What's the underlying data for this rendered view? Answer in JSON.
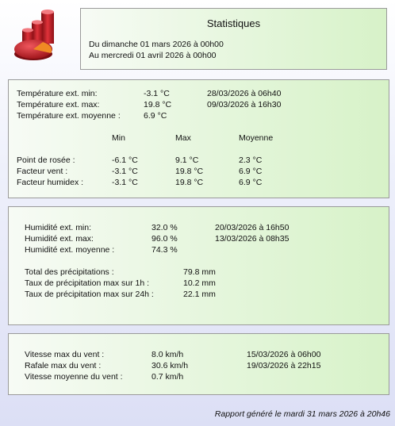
{
  "header": {
    "title": "Statistiques",
    "period_from": "Du dimanche 01 mars 2026 à 00h00",
    "period_to": "Au mercredi 01 avril 2026 à 00h00"
  },
  "temperature": {
    "rows": [
      {
        "label": "Température ext. min:",
        "value": "-3.1 °C",
        "date": "28/03/2026 à 06h40"
      },
      {
        "label": "Température ext. max:",
        "value": "19.8 °C",
        "date": "09/03/2026 à 16h30"
      },
      {
        "label": "Température ext. moyenne :",
        "value": "6.9 °C",
        "date": ""
      }
    ],
    "columns": {
      "min": "Min",
      "max": "Max",
      "avg": "Moyenne"
    },
    "stats": [
      {
        "label": "Point de rosée :",
        "min": "-6.1 °C",
        "max": "9.1 °C",
        "avg": "2.3 °C"
      },
      {
        "label": "Facteur vent :",
        "min": "-3.1 °C",
        "max": "19.8 °C",
        "avg": "6.9 °C"
      },
      {
        "label": "Facteur humidex :",
        "min": "-3.1 °C",
        "max": "19.8 °C",
        "avg": "6.9 °C"
      }
    ]
  },
  "humidity": {
    "rows": [
      {
        "label": "Humidité ext. min:",
        "value": "32.0 %",
        "date": "20/03/2026 à 16h50"
      },
      {
        "label": "Humidité ext. max:",
        "value": "96.0 %",
        "date": "13/03/2026 à 08h35"
      },
      {
        "label": "Humidité ext. moyenne :",
        "value": "74.3 %",
        "date": ""
      }
    ],
    "precip": [
      {
        "label": "Total des précipitations :",
        "value": "79.8 mm"
      },
      {
        "label": "Taux de précipitation max sur 1h :",
        "value": "10.2 mm"
      },
      {
        "label": "Taux de précipitation max sur 24h :",
        "value": "22.1 mm"
      }
    ]
  },
  "wind": {
    "rows": [
      {
        "label": "Vitesse max du vent :",
        "value": "8.0 km/h",
        "date": "15/03/2026 à 06h00"
      },
      {
        "label": "Rafale max du vent :",
        "value": "30.6 km/h",
        "date": "19/03/2026 à 22h15"
      },
      {
        "label": "Vitesse moyenne du vent :",
        "value": "0.7 km/h",
        "date": ""
      }
    ]
  },
  "footer": {
    "text": "Rapport généré le mardi 31 mars 2026 à 20h46"
  },
  "colors": {
    "panel_left": "#f7fbf5",
    "panel_right": "#d7f2c8",
    "logo_red": "#c9222a",
    "logo_orange": "#f08a24"
  }
}
